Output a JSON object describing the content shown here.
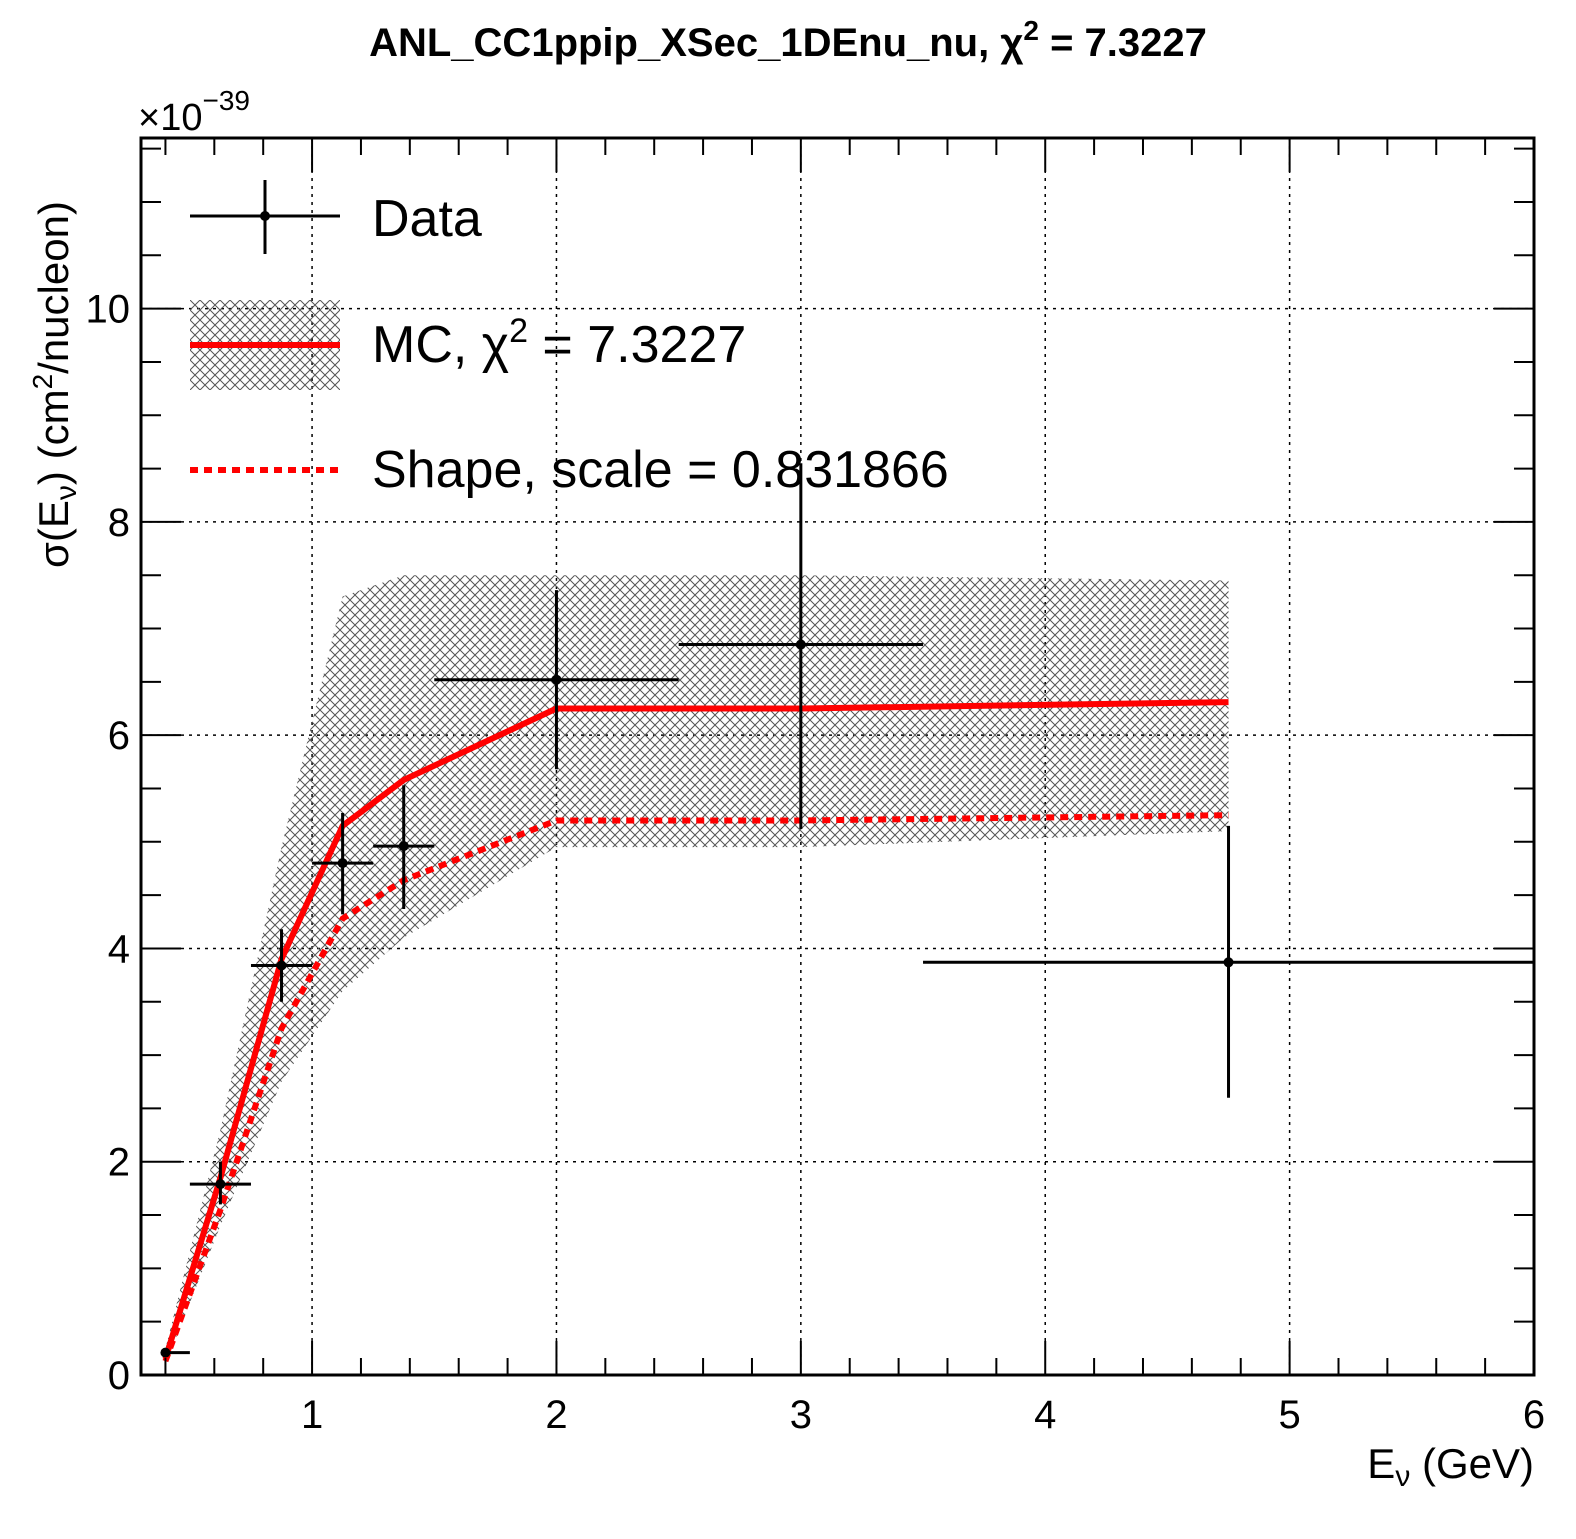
{
  "chart_data": {
    "type": "line",
    "title": "ANL_CC1ppip_XSec_1DEnu_nu, χ² = 7.3227",
    "title_parts": {
      "prefix": "ANL_CC1ppip_XSec_1DEnu_nu, ",
      "chi": "χ",
      "sup": "2",
      "suffix": " = 7.3227"
    },
    "xlabel": "Eν (GeV)",
    "xlabel_parts": {
      "e": "E",
      "nu": "ν",
      "unit": " (GeV)"
    },
    "ylabel": "σ(Eν) (cm²/nucleon)",
    "ylabel_parts": {
      "sigma": "σ(E",
      "nu": "ν",
      "close": ")",
      "unit": " (cm",
      "sup": "2",
      "unit2": "/nucleon)"
    },
    "y_multiplier": {
      "base": "×10",
      "exponent": "−39"
    },
    "xlim": [
      0.3,
      6.0
    ],
    "ylim": [
      0,
      11.6
    ],
    "x_ticks": [
      1,
      2,
      3,
      4,
      5,
      6
    ],
    "x_tick_labels": [
      "1",
      "2",
      "3",
      "4",
      "5",
      "6"
    ],
    "y_ticks": [
      0,
      2,
      4,
      6,
      8,
      10
    ],
    "y_tick_labels": [
      "0",
      "2",
      "4",
      "6",
      "8",
      "10"
    ],
    "grid": true,
    "legend_position": "top-left",
    "legend": [
      {
        "label": "Data"
      },
      {
        "label": "MC, χ² = 7.3227",
        "parts": {
          "prefix": "MC, ",
          "chi": "χ",
          "sup": "2",
          "suffix": " = 7.3227"
        }
      },
      {
        "label": "Shape, scale = 0.831866"
      }
    ],
    "data": {
      "name": "Data",
      "color": "#000000",
      "points": [
        {
          "x": 0.4,
          "y": 0.21,
          "xerr": [
            0.4,
            0.5
          ],
          "yerr": [
            0.21,
            0.21
          ]
        },
        {
          "x": 0.625,
          "y": 1.79,
          "xerr": [
            0.5,
            0.75
          ],
          "yerr": [
            1.6,
            2.0
          ]
        },
        {
          "x": 0.875,
          "y": 3.84,
          "xerr": [
            0.75,
            1.0
          ],
          "yerr": [
            3.5,
            4.18
          ]
        },
        {
          "x": 1.125,
          "y": 4.8,
          "xerr": [
            1.0,
            1.25
          ],
          "yerr": [
            4.32,
            5.27
          ]
        },
        {
          "x": 1.375,
          "y": 4.96,
          "xerr": [
            1.25,
            1.5
          ],
          "yerr": [
            4.37,
            5.53
          ]
        },
        {
          "x": 2.0,
          "y": 6.52,
          "xerr": [
            1.5,
            2.5
          ],
          "yerr": [
            5.68,
            7.36
          ]
        },
        {
          "x": 3.0,
          "y": 6.85,
          "xerr": [
            2.5,
            3.5
          ],
          "yerr": [
            5.12,
            8.55
          ]
        },
        {
          "x": 4.75,
          "y": 3.87,
          "xerr": [
            3.5,
            6.0
          ],
          "yerr": [
            2.6,
            5.15
          ]
        }
      ]
    },
    "mc": {
      "name": "MC",
      "color": "#ff0000",
      "x": [
        0.4,
        0.625,
        0.875,
        1.125,
        1.375,
        2.0,
        3.0,
        4.75
      ],
      "y": [
        0.15,
        1.85,
        3.9,
        5.15,
        5.58,
        6.25,
        6.25,
        6.31
      ],
      "band_low": [
        0.1,
        1.4,
        2.75,
        3.6,
        4.1,
        4.95,
        4.95,
        5.1
      ],
      "band_high": [
        0.25,
        2.3,
        4.95,
        7.3,
        7.5,
        7.5,
        7.5,
        7.45
      ]
    },
    "shape": {
      "name": "Shape",
      "scale": 0.831866,
      "color": "#ff0000",
      "x": [
        0.4,
        0.625,
        0.875,
        1.125,
        1.375,
        2.0,
        3.0,
        4.75
      ],
      "y": [
        0.13,
        1.55,
        3.25,
        4.28,
        4.64,
        5.2,
        5.2,
        5.25
      ]
    }
  }
}
